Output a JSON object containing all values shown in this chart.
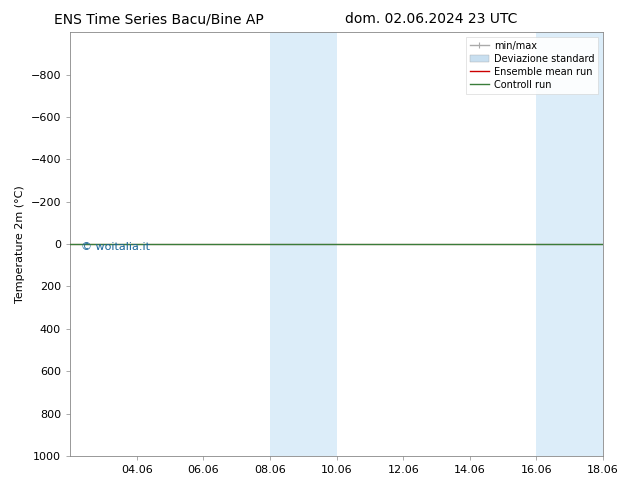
{
  "title_left": "ENS Time Series Bacu/Bine AP",
  "title_right": "dom. 02.06.2024 23 UTC",
  "ylabel": "Temperature 2m (°C)",
  "xlabel": "",
  "ylim_top": -1000,
  "ylim_bottom": 1000,
  "yticks": [
    -800,
    -600,
    -400,
    -200,
    0,
    200,
    400,
    600,
    800,
    1000
  ],
  "xlim": [
    0,
    16
  ],
  "xtick_labels": [
    "04.06",
    "06.06",
    "08.06",
    "10.06",
    "12.06",
    "14.06",
    "16.06",
    "18.06"
  ],
  "xtick_positions": [
    2,
    4,
    6,
    8,
    10,
    12,
    14,
    16
  ],
  "background_color": "#ffffff",
  "plot_bg_color": "#ffffff",
  "shaded_regions": [
    {
      "xmin": 6.0,
      "xmax": 8.0,
      "color": "#d6eaf8",
      "alpha": 0.85
    },
    {
      "xmin": 14.0,
      "xmax": 17.0,
      "color": "#d6eaf8",
      "alpha": 0.85
    }
  ],
  "horizontal_line_y": 0,
  "horizontal_line_color_control": "#3a7d3a",
  "horizontal_line_color_ensemble": "#cc0000",
  "watermark_text": "© woitalia.it",
  "watermark_color": "#1a6699",
  "watermark_fontsize": 8,
  "legend_entries": [
    "min/max",
    "Deviazione standard",
    "Ensemble mean run",
    "Controll run"
  ],
  "legend_colors_line": [
    "#aaaaaa",
    "#c8dff0",
    "#cc0000",
    "#3a7d3a"
  ],
  "title_fontsize": 10,
  "axis_label_fontsize": 8,
  "tick_fontsize": 8,
  "legend_fontsize": 7
}
